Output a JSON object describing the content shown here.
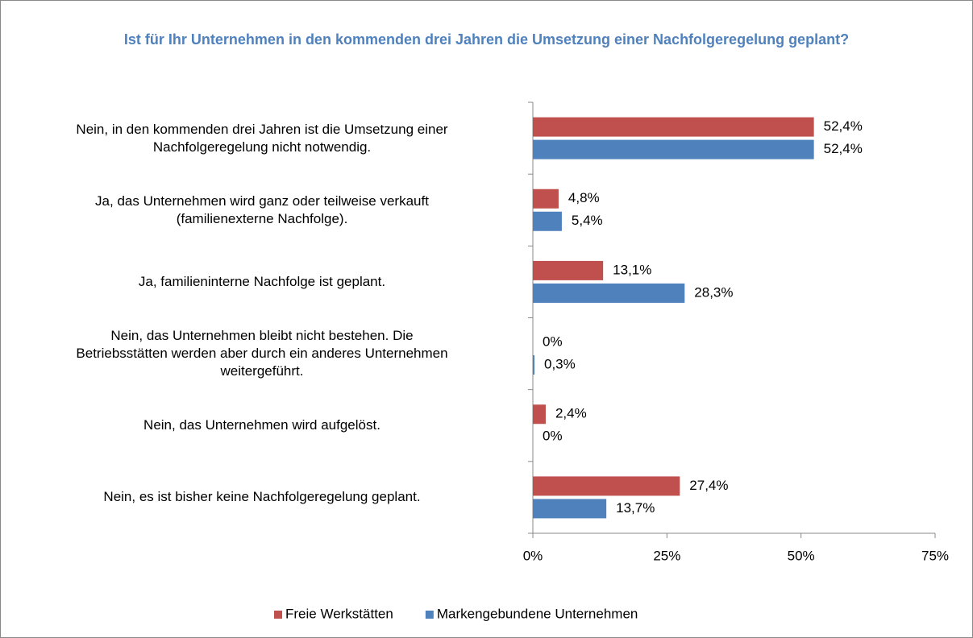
{
  "chart_data": {
    "type": "hbar",
    "title": "Ist für Ihr Unternehmen in den kommenden drei Jahren die Umsetzung einer Nachfolgeregelung geplant?",
    "categories": [
      "Nein, in den kommenden drei Jahren ist die Umsetzung einer\nNachfolgeregelung nicht notwendig.",
      "Ja, das Unternehmen wird ganz oder teilweise verkauft\n(familienexterne Nachfolge).",
      "Ja, familieninterne Nachfolge ist geplant.",
      "Nein, das Unternehmen bleibt nicht bestehen. Die\nBetriebsstätten werden aber durch ein anderes Unternehmen\nweitergeführt.",
      "Nein, das Unternehmen wird aufgelöst.",
      "Nein, es ist bisher keine Nachfolgeregelung geplant."
    ],
    "series": [
      {
        "name": "Freie Werkstätten",
        "color": "#c0504d",
        "values": [
          52.4,
          4.8,
          13.1,
          0,
          2.4,
          27.4
        ],
        "value_labels": [
          "52,4%",
          "4,8%",
          "13,1%",
          "0%",
          "2,4%",
          "27,4%"
        ]
      },
      {
        "name": "Markengebundene Unternehmen",
        "color": "#4f81bd",
        "values": [
          52.4,
          5.4,
          28.3,
          0.3,
          0,
          13.7
        ],
        "value_labels": [
          "52,4%",
          "5,4%",
          "28,3%",
          "0,3%",
          "0%",
          "13,7%"
        ]
      }
    ],
    "xlim": [
      0,
      75
    ],
    "xticks": [
      {
        "value": 0,
        "label": "0%"
      },
      {
        "value": 25,
        "label": "25%"
      },
      {
        "value": 50,
        "label": "50%"
      },
      {
        "value": 75,
        "label": "75%"
      }
    ],
    "legend": "bottom"
  }
}
